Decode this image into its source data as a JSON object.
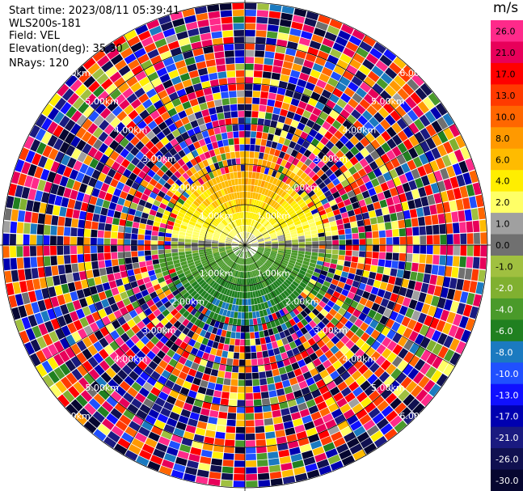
{
  "header": {
    "start_time": "Start time: 2023/08/11 05:39:41",
    "instrument": "WLS200s-181",
    "field": "Field: VEL",
    "elevation": "Elevation(deg): 35.30",
    "nrays": "NRays: 120"
  },
  "colorbar": {
    "title": "m/s",
    "ticks": [
      "26.0",
      "21.0",
      "17.0",
      "13.0",
      "10.0",
      "8.0",
      "6.0",
      "4.0",
      "2.0",
      "1.0",
      "0.0",
      "-1.0",
      "-2.0",
      "-4.0",
      "-6.0",
      "-8.0",
      "-10.0",
      "-13.0",
      "-17.0",
      "-21.0",
      "-26.0",
      "-30.0"
    ],
    "colors": [
      "#ff2a8a",
      "#e8005a",
      "#ff0000",
      "#ff3a00",
      "#ff6600",
      "#ff9900",
      "#ffbb00",
      "#ffee00",
      "#ffff66",
      "#a0a0a0",
      "#707070",
      "#a0c040",
      "#80b030",
      "#4a9a2a",
      "#208020",
      "#1b7ac0",
      "#2050ff",
      "#1010ff",
      "#0000b0",
      "#1a1a80",
      "#101050",
      "#060630"
    ]
  },
  "chart_data": {
    "type": "ppi",
    "field": "VEL",
    "units": "m/s",
    "nrays": 120,
    "elevation_deg": 35.3,
    "range_rings_km": [
      1.0,
      2.0,
      3.0,
      4.0,
      5.0,
      6.0
    ],
    "ring_labels": [
      "1.00km",
      "2.00km",
      "3.00km",
      "4.00km",
      "5.00km",
      "6.00km"
    ],
    "max_range_km": 6.0,
    "vmin": -30.0,
    "vmax": 30.0,
    "pattern": {
      "near_range_km": 2.3,
      "north_sector_velocity_ms": [
        2.0,
        8.0
      ],
      "south_sector_velocity_ms": [
        -2.0,
        -6.0
      ],
      "beyond_near_range": "noise"
    }
  }
}
